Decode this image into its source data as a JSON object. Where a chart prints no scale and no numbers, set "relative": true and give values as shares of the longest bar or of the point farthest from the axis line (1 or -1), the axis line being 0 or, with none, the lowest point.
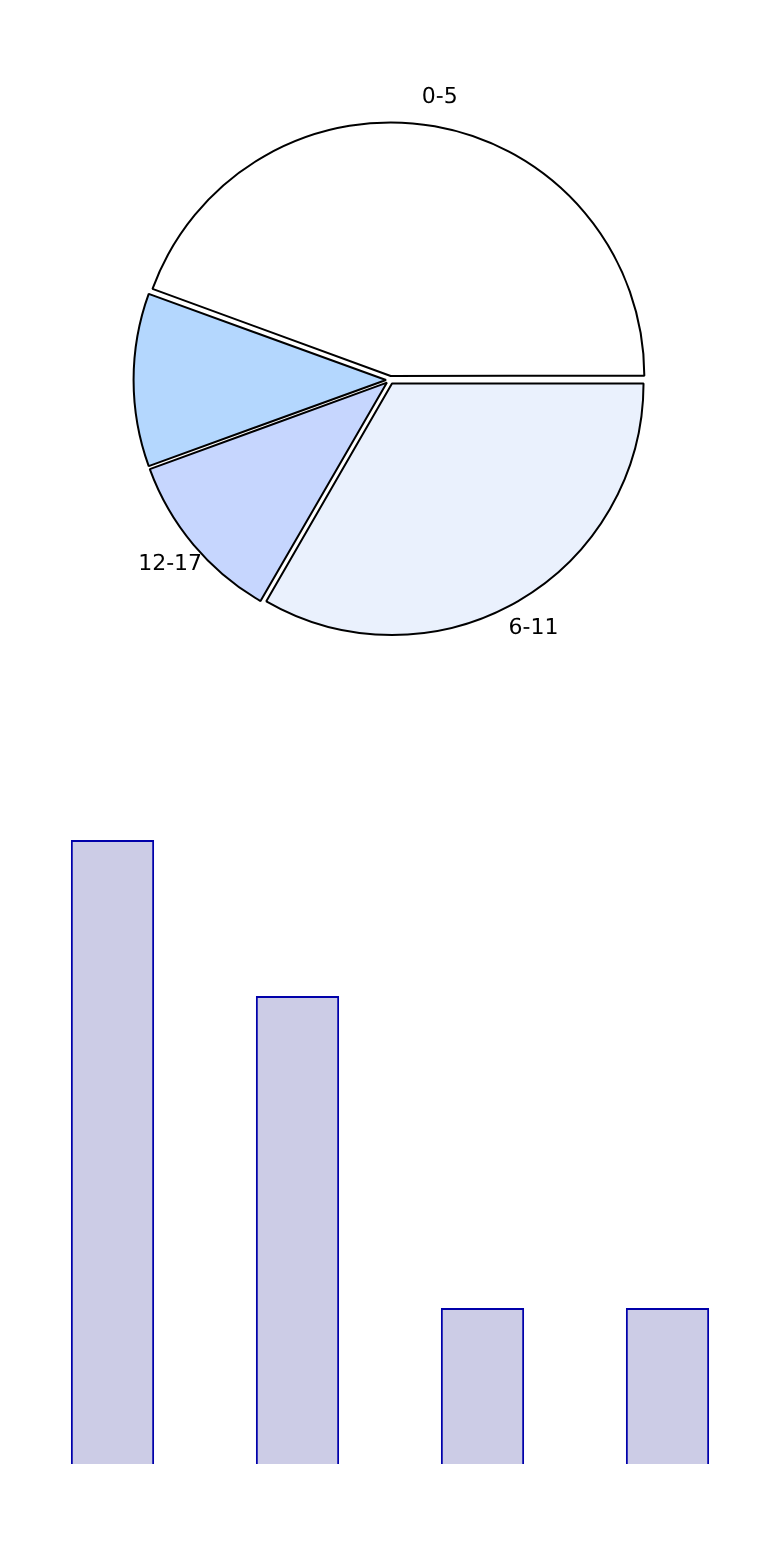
{
  "chart_data": [
    {
      "type": "pie",
      "categories": [
        "0-5",
        "6-11",
        "12-17",
        null
      ],
      "values": [
        44.4,
        33.3,
        11.1,
        11.1
      ],
      "colors": [
        "#ffffff",
        "#eaf1fd",
        "#c6d6fe",
        "#b4d7fe"
      ]
    },
    {
      "type": "bar",
      "categories": [
        null,
        null,
        null,
        null
      ],
      "values": [
        1,
        0.75,
        0.25,
        0.25
      ],
      "color": "#ccccE6",
      "relative": true,
      "grid": false,
      "legend": false
    }
  ]
}
